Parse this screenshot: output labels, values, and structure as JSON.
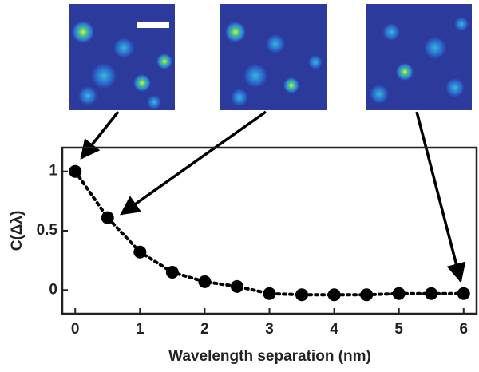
{
  "chart_data": {
    "type": "line",
    "xlabel": "Wavelength separation (nm)",
    "ylabel": "C(Δλ)",
    "x": [
      0,
      0.5,
      1,
      1.5,
      2,
      2.5,
      3,
      3.5,
      4,
      4.5,
      5,
      5.5,
      6
    ],
    "values": [
      1,
      0.61,
      0.32,
      0.15,
      0.07,
      0.03,
      -0.03,
      -0.04,
      -0.04,
      -0.04,
      -0.03,
      -0.03,
      -0.03
    ],
    "color": "#000000",
    "xlim": [
      -0.2,
      6.2
    ],
    "xticks": [
      0,
      1,
      2,
      3,
      4,
      5,
      6
    ],
    "ylim": [
      -0.2,
      1.2
    ],
    "yticks": [
      0,
      0.5,
      1
    ]
  }
}
